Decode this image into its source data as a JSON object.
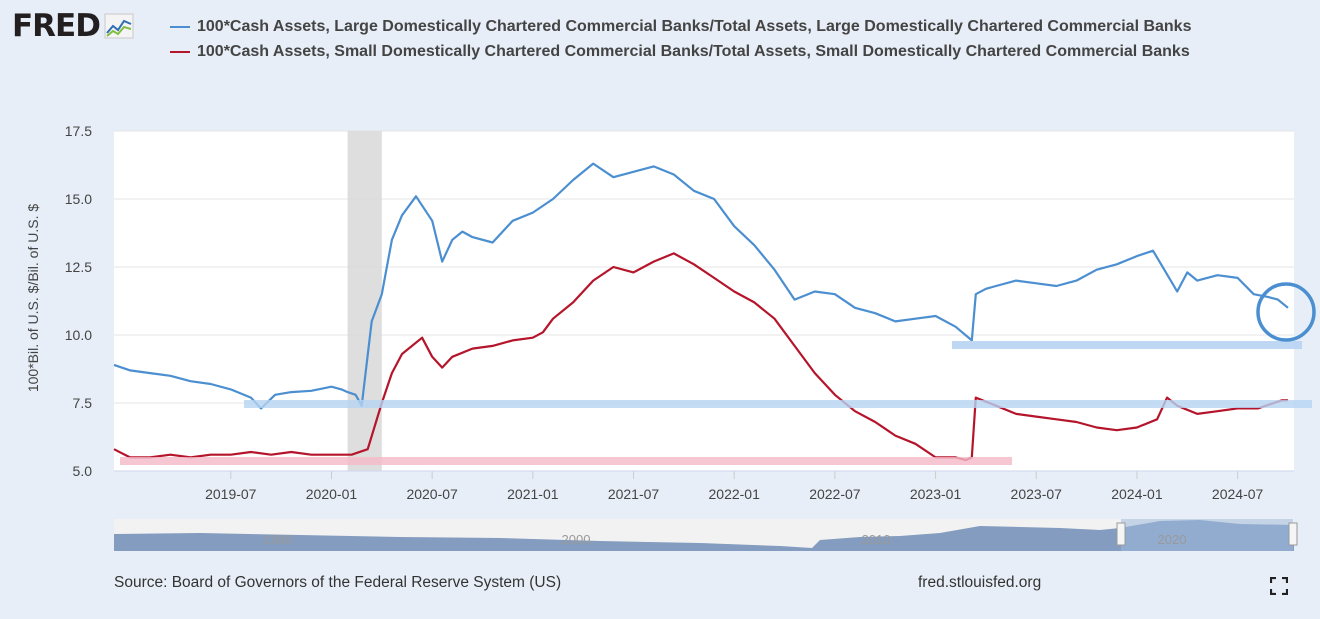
{
  "header": {
    "logo_text": "FRED",
    "logo_icon": "line-chart-icon"
  },
  "legend": [
    {
      "label": "100*Cash Assets, Large Domestically Chartered Commercial Banks/Total Assets, Large Domestically Chartered Commercial Banks",
      "color": "#4b8fd1"
    },
    {
      "label": "100*Cash Assets, Small Domestically Chartered Commercial Banks/Total Assets, Small Domestically Chartered Commercial Banks",
      "color": "#b5152b"
    }
  ],
  "chart_data": {
    "type": "line",
    "title": "",
    "xlabel": "",
    "ylabel": "100*Bil. of U.S. $/Bil. of U.S. $",
    "xlim": [
      2018.92,
      2024.78
    ],
    "ylim": [
      5.0,
      17.5
    ],
    "yticks": [
      "5.0",
      "7.5",
      "10.0",
      "12.5",
      "15.0",
      "17.5"
    ],
    "ytick_values": [
      5.0,
      7.5,
      10.0,
      12.5,
      15.0,
      17.5
    ],
    "xticks": [
      "2019-07",
      "2020-01",
      "2020-07",
      "2021-01",
      "2021-07",
      "2022-01",
      "2022-07",
      "2023-01",
      "2023-07",
      "2024-01",
      "2024-07"
    ],
    "xtick_values": [
      2019.5,
      2020.0,
      2020.5,
      2021.0,
      2021.5,
      2022.0,
      2022.5,
      2023.0,
      2023.5,
      2024.0,
      2024.5
    ],
    "recession": [
      2020.08,
      2020.25
    ],
    "series": [
      {
        "name": "100*Cash Assets, Large Domestically Chartered Commercial Banks/Total Assets, Large Domestically Chartered Commercial Banks",
        "color": "#4b8fd1",
        "x": [
          2018.92,
          2019.0,
          2019.1,
          2019.2,
          2019.3,
          2019.4,
          2019.5,
          2019.6,
          2019.65,
          2019.72,
          2019.8,
          2019.9,
          2020.0,
          2020.05,
          2020.08,
          2020.12,
          2020.15,
          2020.2,
          2020.25,
          2020.3,
          2020.35,
          2020.42,
          2020.5,
          2020.55,
          2020.6,
          2020.65,
          2020.7,
          2020.8,
          2020.9,
          2021.0,
          2021.1,
          2021.2,
          2021.3,
          2021.4,
          2021.5,
          2021.6,
          2021.7,
          2021.8,
          2021.9,
          2022.0,
          2022.1,
          2022.2,
          2022.3,
          2022.4,
          2022.5,
          2022.6,
          2022.7,
          2022.8,
          2022.9,
          2023.0,
          2023.1,
          2023.18,
          2023.2,
          2023.25,
          2023.3,
          2023.4,
          2023.5,
          2023.6,
          2023.7,
          2023.8,
          2023.9,
          2024.0,
          2024.08,
          2024.12,
          2024.2,
          2024.25,
          2024.3,
          2024.4,
          2024.5,
          2024.58,
          2024.65,
          2024.7,
          2024.75
        ],
        "y": [
          8.9,
          8.7,
          8.6,
          8.5,
          8.3,
          8.2,
          8.0,
          7.7,
          7.3,
          7.8,
          7.9,
          7.95,
          8.1,
          8.0,
          7.9,
          7.8,
          7.4,
          10.5,
          11.5,
          13.5,
          14.4,
          15.1,
          14.2,
          12.7,
          13.5,
          13.8,
          13.6,
          13.4,
          14.2,
          14.5,
          15.0,
          15.7,
          16.3,
          15.8,
          16.0,
          16.2,
          15.9,
          15.3,
          15.0,
          14.0,
          13.3,
          12.4,
          11.3,
          11.6,
          11.5,
          11.0,
          10.8,
          10.5,
          10.6,
          10.7,
          10.3,
          9.8,
          11.5,
          11.7,
          11.8,
          12.0,
          11.9,
          11.8,
          12.0,
          12.4,
          12.6,
          12.9,
          13.1,
          12.6,
          11.6,
          12.3,
          12.0,
          12.2,
          12.1,
          11.5,
          11.4,
          11.3,
          11.0
        ]
      },
      {
        "name": "100*Cash Assets, Small Domestically Chartered Commercial Banks/Total Assets, Small Domestically Chartered Commercial Banks",
        "color": "#b5152b",
        "x": [
          2018.92,
          2019.0,
          2019.1,
          2019.2,
          2019.3,
          2019.4,
          2019.5,
          2019.6,
          2019.7,
          2019.8,
          2019.9,
          2020.0,
          2020.1,
          2020.18,
          2020.25,
          2020.3,
          2020.35,
          2020.45,
          2020.5,
          2020.55,
          2020.6,
          2020.7,
          2020.8,
          2020.9,
          2021.0,
          2021.05,
          2021.1,
          2021.2,
          2021.3,
          2021.4,
          2021.5,
          2021.6,
          2021.7,
          2021.8,
          2021.9,
          2022.0,
          2022.1,
          2022.2,
          2022.3,
          2022.4,
          2022.5,
          2022.6,
          2022.7,
          2022.8,
          2022.9,
          2023.0,
          2023.1,
          2023.15,
          2023.18,
          2023.2,
          2023.3,
          2023.4,
          2023.5,
          2023.6,
          2023.7,
          2023.8,
          2023.9,
          2024.0,
          2024.1,
          2024.15,
          2024.2,
          2024.3,
          2024.4,
          2024.5,
          2024.6,
          2024.68,
          2024.72,
          2024.75
        ],
        "y": [
          5.8,
          5.5,
          5.5,
          5.6,
          5.5,
          5.6,
          5.6,
          5.7,
          5.6,
          5.7,
          5.6,
          5.6,
          5.6,
          5.8,
          7.5,
          8.6,
          9.3,
          9.9,
          9.2,
          8.8,
          9.2,
          9.5,
          9.6,
          9.8,
          9.9,
          10.1,
          10.6,
          11.2,
          12.0,
          12.5,
          12.3,
          12.7,
          13.0,
          12.6,
          12.1,
          11.6,
          11.2,
          10.6,
          9.6,
          8.6,
          7.8,
          7.2,
          6.8,
          6.3,
          6.0,
          5.5,
          5.5,
          5.4,
          5.5,
          7.7,
          7.4,
          7.1,
          7.0,
          6.9,
          6.8,
          6.6,
          6.5,
          6.6,
          6.9,
          7.7,
          7.4,
          7.1,
          7.2,
          7.3,
          7.3,
          7.5,
          7.6,
          7.6
        ]
      }
    ],
    "navigator_labels": [
      "1990",
      "2000",
      "2010",
      "2020"
    ]
  },
  "footer": {
    "source": "Source: Board of Governors of the Federal Reserve System (US)",
    "site": "fred.stlouisfed.org",
    "fullscreen_icon": "fullscreen-icon"
  }
}
